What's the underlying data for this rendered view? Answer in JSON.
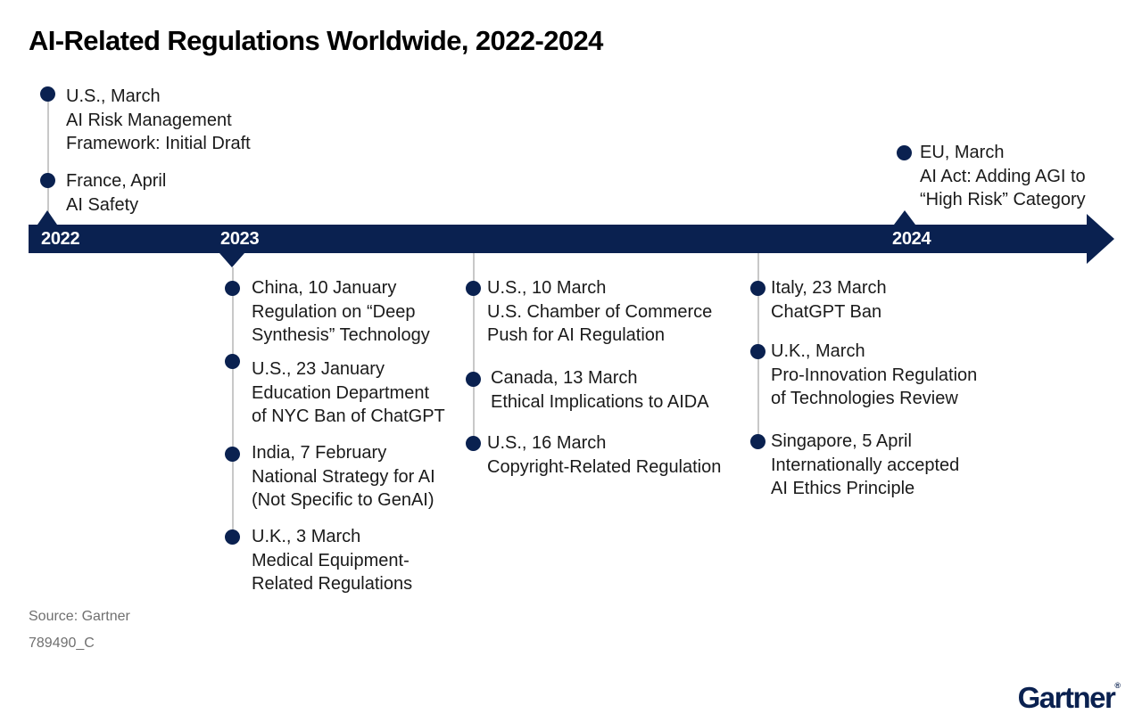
{
  "title": "AI-Related Regulations Worldwide, 2022-2024",
  "years": [
    "2022",
    "2023",
    "2024"
  ],
  "events": [
    {
      "id": "us-2022",
      "year": "2022",
      "side": "above",
      "header": "U.S., March",
      "lines": [
        "AI Risk Management",
        "Framework: Initial Draft"
      ]
    },
    {
      "id": "france-2022",
      "year": "2022",
      "side": "above",
      "header": "France, April",
      "lines": [
        "AI Safety"
      ]
    },
    {
      "id": "eu-2024",
      "year": "2024",
      "side": "above",
      "header": "EU, March",
      "lines": [
        "AI Act: Adding AGI to",
        "“High Risk” Category"
      ]
    },
    {
      "id": "china-2023",
      "year": "2023",
      "side": "below",
      "header": "China, 10 January",
      "lines": [
        "Regulation on “Deep",
        "Synthesis” Technology"
      ]
    },
    {
      "id": "us-jan-2023",
      "year": "2023",
      "side": "below",
      "header": "U.S., 23 January",
      "lines": [
        "Education Department",
        "of NYC Ban of ChatGPT"
      ]
    },
    {
      "id": "india-2023",
      "year": "2023",
      "side": "below",
      "header": "India, 7 February",
      "lines": [
        "National Strategy for AI",
        "(Not Specific to GenAI)"
      ]
    },
    {
      "id": "uk-mar3-2023",
      "year": "2023",
      "side": "below",
      "header": "U.K., 3 March",
      "lines": [
        "Medical Equipment-",
        "Related Regulations"
      ]
    },
    {
      "id": "us-mar10-2023",
      "year": "2023",
      "side": "below",
      "header": "U.S., 10 March",
      "lines": [
        "U.S. Chamber of Commerce",
        "Push for AI Regulation"
      ]
    },
    {
      "id": "canada-2023",
      "year": "2023",
      "side": "below",
      "header": "Canada, 13 March",
      "lines": [
        "Ethical Implications to AIDA"
      ]
    },
    {
      "id": "us-mar16-2023",
      "year": "2023",
      "side": "below",
      "header": "U.S., 16 March",
      "lines": [
        "Copyright-Related Regulation"
      ]
    },
    {
      "id": "italy-2023",
      "year": "2023",
      "side": "below",
      "header": "Italy, 23 March",
      "lines": [
        "ChatGPT Ban"
      ]
    },
    {
      "id": "uk-mar-2023",
      "year": "2023",
      "side": "below",
      "header": "U.K., March",
      "lines": [
        "Pro-Innovation Regulation",
        "of Technologies Review"
      ]
    },
    {
      "id": "singapore-2023",
      "year": "2023",
      "side": "below",
      "header": "Singapore, 5 April",
      "lines": [
        "Internationally accepted",
        "AI Ethics Principle"
      ]
    }
  ],
  "source": "Source: Gartner",
  "figure_id": "789490_C",
  "logo": {
    "text": "Gartner",
    "mark": "®"
  },
  "colors": {
    "navy": "#0a2150",
    "connector": "#c8c8c8",
    "text": "#1a1a1a",
    "muted": "#707070"
  }
}
